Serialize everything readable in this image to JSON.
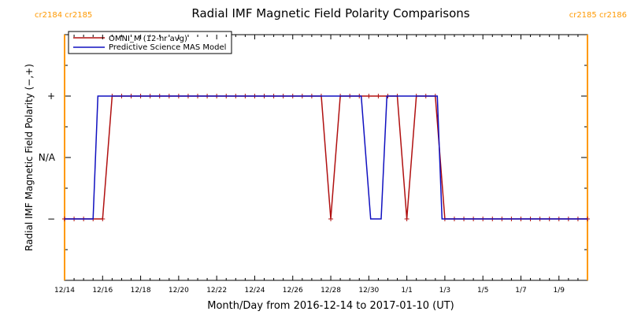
{
  "chart_data": {
    "type": "line",
    "title": "Radial IMF Magnetic Field Polarity Comparisons",
    "xlabel": "Month/Day from 2016-12-14 to 2017-01-10 (UT)",
    "ylabel": "Radial IMF Magnetic Field Polarity (−,+)",
    "x_range_days": [
      0,
      27.5
    ],
    "ylim": [
      -2,
      2
    ],
    "x_ticks": [
      {
        "day": 0,
        "label": "12/14"
      },
      {
        "day": 2,
        "label": "12/16"
      },
      {
        "day": 4,
        "label": "12/18"
      },
      {
        "day": 6,
        "label": "12/20"
      },
      {
        "day": 8,
        "label": "12/22"
      },
      {
        "day": 10,
        "label": "12/24"
      },
      {
        "day": 12,
        "label": "12/26"
      },
      {
        "day": 14,
        "label": "12/28"
      },
      {
        "day": 16,
        "label": "12/30"
      },
      {
        "day": 18,
        "label": "1/1"
      },
      {
        "day": 20,
        "label": "1/3"
      },
      {
        "day": 22,
        "label": "1/5"
      },
      {
        "day": 24,
        "label": "1/7"
      },
      {
        "day": 26,
        "label": "1/9"
      }
    ],
    "y_ticks": [
      {
        "value": 1,
        "label": "+"
      },
      {
        "value": 0,
        "label": "N/A"
      },
      {
        "value": -1,
        "label": "−"
      }
    ],
    "legend_position": "top-left",
    "series": [
      {
        "name": "OMNI_M (12-hr avg)",
        "color": "#b01010",
        "marker": "plus",
        "points": [
          [
            0,
            -1
          ],
          [
            0.5,
            -1
          ],
          [
            1,
            -1
          ],
          [
            1.5,
            -1
          ],
          [
            2,
            -1
          ],
          [
            2.5,
            1
          ],
          [
            3,
            1
          ],
          [
            3.5,
            1
          ],
          [
            4,
            1
          ],
          [
            4.5,
            1
          ],
          [
            5,
            1
          ],
          [
            5.5,
            1
          ],
          [
            6,
            1
          ],
          [
            6.5,
            1
          ],
          [
            7,
            1
          ],
          [
            7.5,
            1
          ],
          [
            8,
            1
          ],
          [
            8.5,
            1
          ],
          [
            9,
            1
          ],
          [
            9.5,
            1
          ],
          [
            10,
            1
          ],
          [
            10.5,
            1
          ],
          [
            11,
            1
          ],
          [
            11.5,
            1
          ],
          [
            12,
            1
          ],
          [
            12.5,
            1
          ],
          [
            13,
            1
          ],
          [
            13.5,
            1
          ],
          [
            14,
            -1
          ],
          [
            14.5,
            1
          ],
          [
            15,
            1
          ],
          [
            15.5,
            1
          ],
          [
            16,
            1
          ],
          [
            16.5,
            1
          ],
          [
            17,
            1
          ],
          [
            17.5,
            1
          ],
          [
            18,
            -1
          ],
          [
            18.5,
            1
          ],
          [
            19,
            1
          ],
          [
            19.5,
            1
          ],
          [
            20,
            -1
          ],
          [
            20.5,
            -1
          ],
          [
            21,
            -1
          ],
          [
            21.5,
            -1
          ],
          [
            22,
            -1
          ],
          [
            22.5,
            -1
          ],
          [
            23,
            -1
          ],
          [
            23.5,
            -1
          ],
          [
            24,
            -1
          ],
          [
            24.5,
            -1
          ],
          [
            25,
            -1
          ],
          [
            25.5,
            -1
          ],
          [
            26,
            -1
          ],
          [
            26.5,
            -1
          ],
          [
            27,
            -1
          ],
          [
            27.5,
            -1
          ]
        ]
      },
      {
        "name": "Predictive Science MAS Model",
        "color": "#1010c0",
        "marker": "none",
        "points": [
          [
            0,
            -1
          ],
          [
            1.5,
            -1
          ],
          [
            1.75,
            1
          ],
          [
            15.6,
            1
          ],
          [
            16.1,
            -1
          ],
          [
            16.65,
            -1
          ],
          [
            16.95,
            1
          ],
          [
            19.6,
            1
          ],
          [
            19.85,
            -1
          ],
          [
            27.5,
            -1
          ]
        ]
      }
    ]
  },
  "markers": [
    {
      "label": "cr2184 cr2185",
      "day": 0,
      "color": "#ff9900",
      "text_anchor": "start"
    },
    {
      "label": "cr2185 cr2186",
      "day": 27.5,
      "color": "#ff9900",
      "text_anchor": "end"
    }
  ]
}
